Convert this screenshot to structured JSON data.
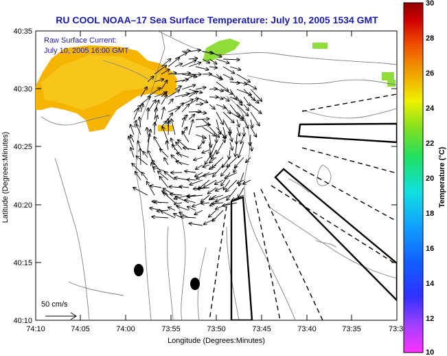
{
  "title": "RU COOL  NOAA–17  Sea Surface Temperature:  July 10, 2005 1534 GMT",
  "inset": {
    "line1": "Raw Surface Current:",
    "line2": "July 10, 2005 16:00 GMT"
  },
  "scale_label": "50 cm/s",
  "x_axis": {
    "label": "Longitude (Degrees:Minutes)",
    "ticks": [
      "74:10",
      "74:05",
      "74:00",
      "73:55",
      "73:50",
      "73:45",
      "73:40",
      "73:35",
      "73:3"
    ]
  },
  "y_axis": {
    "label": "Latitude (Degrees:Minutes)",
    "ticks": [
      "40:35",
      "40:30",
      "40:25",
      "40:20",
      "40:15",
      "40:10"
    ]
  },
  "colorbar": {
    "label": "Temperature (°C)",
    "ticks": [
      "30",
      "28",
      "26",
      "24",
      "22",
      "20",
      "18",
      "16",
      "14",
      "12",
      "10"
    ],
    "range": [
      10,
      30
    ]
  },
  "colors": {
    "title_blue": "#1a1aa8",
    "sst_warm": "#f4b400",
    "sst_green": "#8fdc3a",
    "land_line": "#808080",
    "vector": "#000000"
  }
}
